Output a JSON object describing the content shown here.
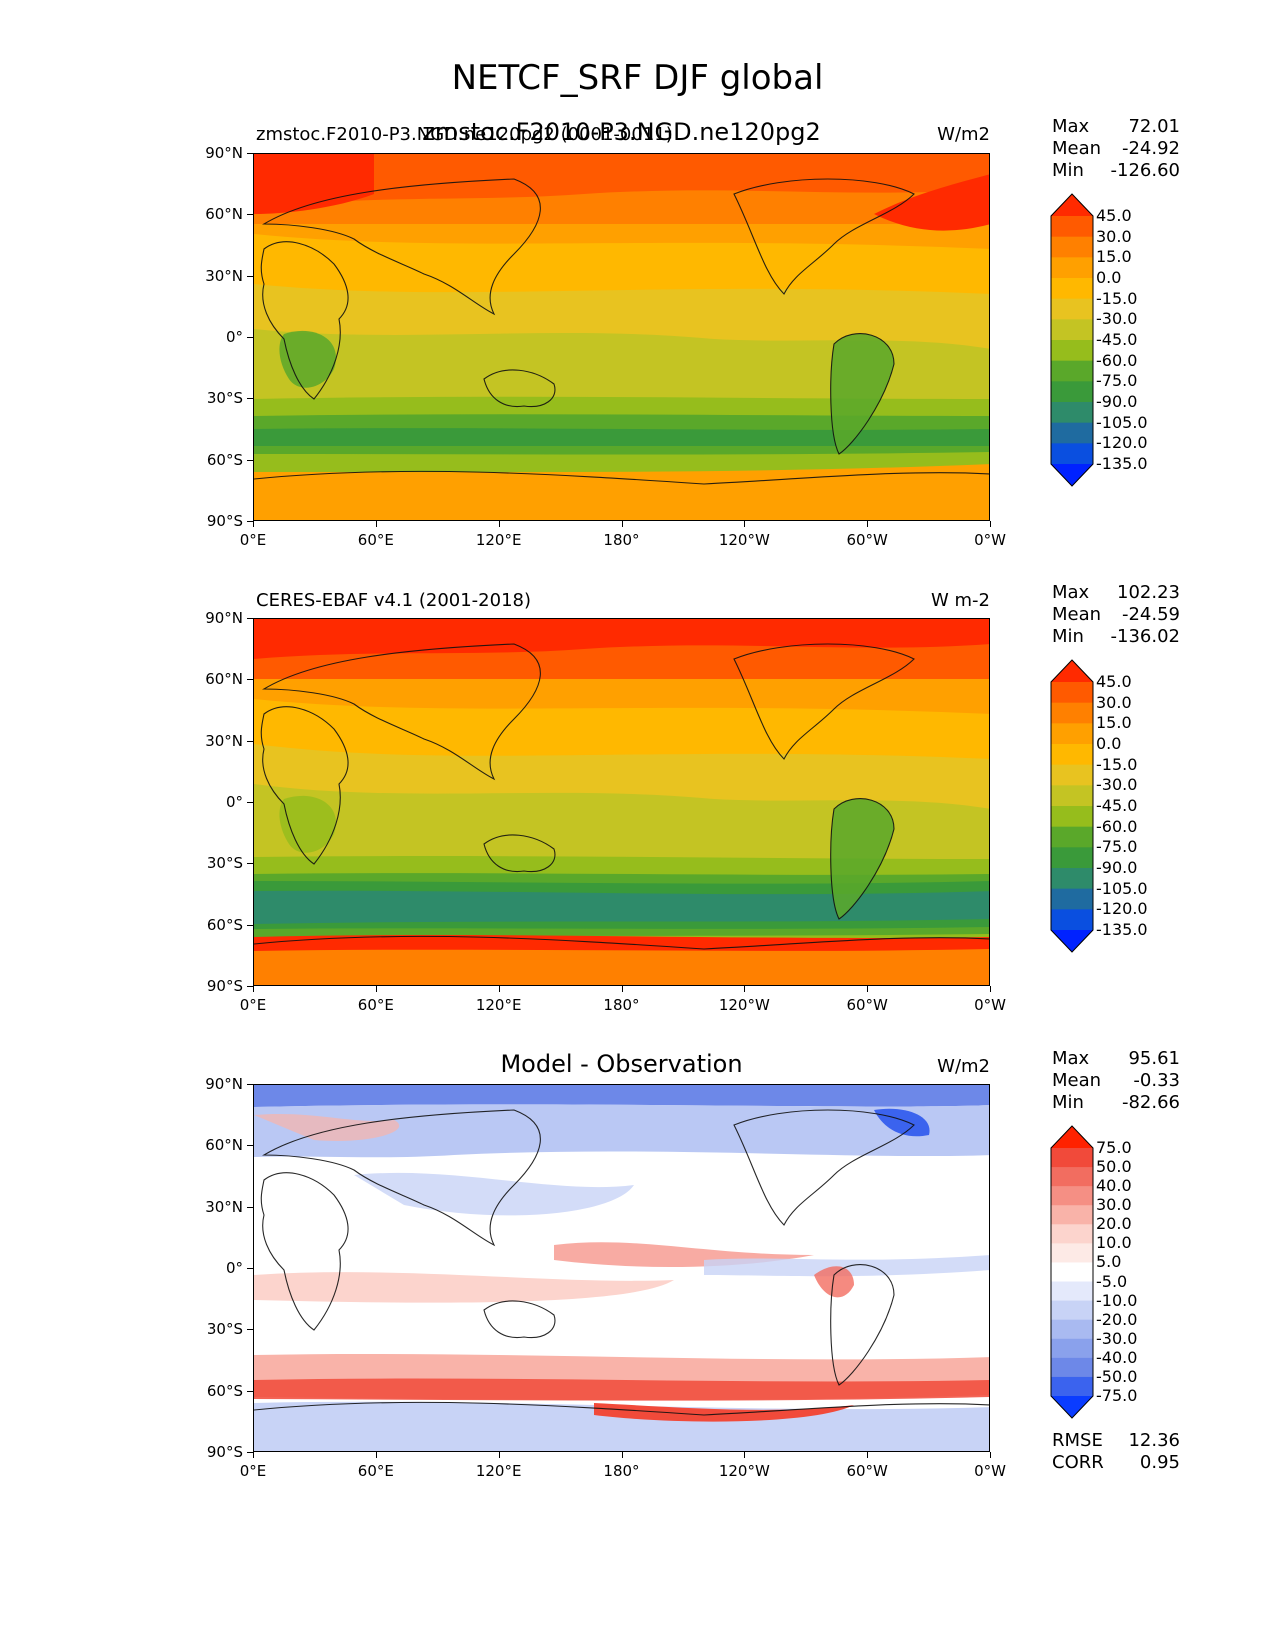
{
  "figure_title": "NETCF_SRF DJF global",
  "panels": [
    {
      "id": "test",
      "title_left": "zmstoc.F2010-P3.NGD.ne120pg2 (0001-0011)",
      "title_center": "zmstoc.F2010-P3.NGD.ne120pg2",
      "units": "W/m2",
      "stats": {
        "max_label": "Max",
        "max": "72.01",
        "mean_label": "Mean",
        "mean": "-24.92",
        "min_label": "Min",
        "min": "-126.60"
      },
      "colorbar_labels": [
        "45.0",
        "30.0",
        "15.0",
        "0.0",
        "-15.0",
        "-30.0",
        "-45.0",
        "-60.0",
        "-75.0",
        "-90.0",
        "-105.0",
        "-120.0",
        "-135.0"
      ]
    },
    {
      "id": "reference",
      "title_left": "CERES-EBAF v4.1 (2001-2018)",
      "title_center": "",
      "units": "W m-2",
      "stats": {
        "max_label": "Max",
        "max": "102.23",
        "mean_label": "Mean",
        "mean": "-24.59",
        "min_label": "Min",
        "min": "-136.02"
      },
      "colorbar_labels": [
        "45.0",
        "30.0",
        "15.0",
        "0.0",
        "-15.0",
        "-30.0",
        "-45.0",
        "-60.0",
        "-75.0",
        "-90.0",
        "-105.0",
        "-120.0",
        "-135.0"
      ]
    },
    {
      "id": "difference",
      "title_left": "",
      "title_center": "Model - Observation",
      "units": "W/m2",
      "stats": {
        "max_label": "Max",
        "max": "95.61",
        "mean_label": "Mean",
        "mean": "-0.33",
        "min_label": "Min",
        "min": "-82.66"
      },
      "colorbar_labels": [
        "75.0",
        "50.0",
        "40.0",
        "30.0",
        "20.0",
        "10.0",
        "5.0",
        "-5.0",
        "-10.0",
        "-20.0",
        "-30.0",
        "-40.0",
        "-50.0",
        "-75.0"
      ],
      "metrics": {
        "rmse_label": "RMSE",
        "rmse": "12.36",
        "corr_label": "CORR",
        "corr": "0.95"
      }
    }
  ],
  "axes": {
    "y_ticks": [
      "90°N",
      "60°N",
      "30°N",
      "0°",
      "30°S",
      "60°S",
      "90°S"
    ],
    "x_ticks": [
      "0°E",
      "60°E",
      "120°E",
      "180°",
      "120°W",
      "60°W",
      "0°W"
    ]
  },
  "colors": {
    "field_scale": [
      "#ff2a00",
      "#ff5a00",
      "#ff8000",
      "#ffa000",
      "#ffb800",
      "#e8c320",
      "#c4c423",
      "#96bd1c",
      "#5aa82a",
      "#3a9a3a",
      "#2e8b6a",
      "#1f6ba0",
      "#0a4fe0",
      "#0022ff"
    ],
    "diff_scale": [
      "#ff2200",
      "#f14a3a",
      "#f26d60",
      "#f58f84",
      "#f9b3a9",
      "#fcd4cd",
      "#fdeae6",
      "#ffffff",
      "#e4e9fb",
      "#c8d3f6",
      "#a9baf1",
      "#8aa1ec",
      "#6d88e8",
      "#3b63ee",
      "#0a3cff"
    ]
  }
}
